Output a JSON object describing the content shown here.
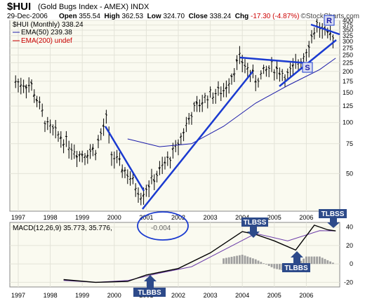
{
  "header": {
    "symbol": "$HUI",
    "subtitle": "(Gold Bugs Index - AMEX)",
    "exchange": "INDX",
    "date": "29-Dec-2006",
    "open_label": "Open",
    "open": "355.54",
    "high_label": "High",
    "high": "362.53",
    "low_label": "Low",
    "low": "324.70",
    "close_label": "Close",
    "close": "338.24",
    "chg_label": "Chg",
    "chg": "-17.30 (-4.87%)",
    "watermark": "©StockCharts.com"
  },
  "legend": [
    {
      "text": "$HUI (Monthly) 338.24",
      "color": "#000000"
    },
    {
      "text": "EMA(50) 239.38",
      "color": "#1a1aa8"
    },
    {
      "text": "EMA(200) undef",
      "color": "#cc0000"
    }
  ],
  "x_years": [
    "1997",
    "1998",
    "1999",
    "2000",
    "2001",
    "2002",
    "2003",
    "2004",
    "2005",
    "2006"
  ],
  "price_axis": [
    "400",
    "375",
    "350",
    "325",
    "300",
    "275",
    "250",
    "225",
    "200",
    "175",
    "150",
    "125",
    "100",
    "75",
    "50"
  ],
  "macd_axis": [
    "40",
    "20",
    "0",
    "-20"
  ],
  "annotations": {
    "r_label": "R",
    "s_label": "S",
    "macd_value": "-0.004",
    "tlbbs_1": "TLBBS",
    "tlbss_1": "TLBSS",
    "tlbbs_2": "TLBBS",
    "tlbss_2": "TLBSS"
  },
  "macd_legend": {
    "text1": "MACD(12,26,9) 35.773,",
    "text2": "35.776,",
    "text3": "-0.004"
  },
  "colors": {
    "accent": "#1a1aa8",
    "panel_bg": "#fafaf0",
    "bars": "#000000",
    "hist": "#a0a0a0",
    "ann_box": "#2d4a8a"
  },
  "chart_data": [
    {
      "type": "ohlc",
      "title": "$HUI (Monthly)",
      "scale": "log",
      "ylim": [
        30,
        400
      ],
      "x_range": [
        "1996-10",
        "2006-12"
      ],
      "series": [
        {
          "name": "$HUI (Monthly)",
          "x": [
            "1996-12",
            "1997-06",
            "1997-12",
            "1998-06",
            "1998-12",
            "1999-06",
            "1999-10",
            "1999-12",
            "2000-06",
            "2000-11",
            "2001-06",
            "2001-12",
            "2002-06",
            "2002-12",
            "2003-06",
            "2003-12",
            "2004-06",
            "2004-12",
            "2005-06",
            "2005-12",
            "2006-05",
            "2006-09",
            "2006-12"
          ],
          "y": [
            175,
            165,
            95,
            80,
            65,
            70,
            105,
            65,
            50,
            38,
            52,
            70,
            115,
            145,
            155,
            240,
            180,
            215,
            190,
            250,
            380,
            320,
            338.24
          ]
        },
        {
          "name": "EMA(50)",
          "x": [
            "2000-06",
            "2001-06",
            "2002-06",
            "2003-06",
            "2004-06",
            "2005-06",
            "2006-06",
            "2006-12"
          ],
          "y": [
            80,
            72,
            75,
            95,
            130,
            165,
            205,
            239.38
          ]
        }
      ],
      "annotations": [
        "R",
        "S"
      ]
    },
    {
      "type": "line",
      "title": "MACD(12,26,9)",
      "ylim": [
        -25,
        45
      ],
      "series": [
        {
          "name": "MACD",
          "x": [
            "1998-06",
            "1999-06",
            "2000-06",
            "2001-01",
            "2002-01",
            "2003-01",
            "2004-01",
            "2004-06",
            "2005-01",
            "2005-09",
            "2006-04",
            "2006-09",
            "2006-12"
          ],
          "y": [
            -17,
            -20,
            -19,
            -12,
            -5,
            12,
            35,
            32,
            25,
            15,
            42,
            37,
            35.773
          ]
        },
        {
          "name": "Signal",
          "x": [
            "1998-06",
            "1999-06",
            "2000-06",
            "2001-06",
            "2002-06",
            "2003-06",
            "2004-06",
            "2005-06",
            "2006-06",
            "2006-12"
          ],
          "y": [
            -18,
            -20,
            -18,
            -10,
            -3,
            15,
            33,
            25,
            36,
            35.776
          ]
        },
        {
          "name": "Histogram",
          "x": [
            "2003-06",
            "2004-01",
            "2004-06",
            "2005-01",
            "2005-06",
            "2006-01",
            "2006-06",
            "2006-12"
          ],
          "y": [
            6,
            10,
            5,
            -5,
            -8,
            8,
            8,
            -0.004
          ]
        }
      ],
      "annotations": [
        "TLBBS",
        "TLBSS",
        "TLBBS",
        "TLBSS"
      ]
    }
  ]
}
